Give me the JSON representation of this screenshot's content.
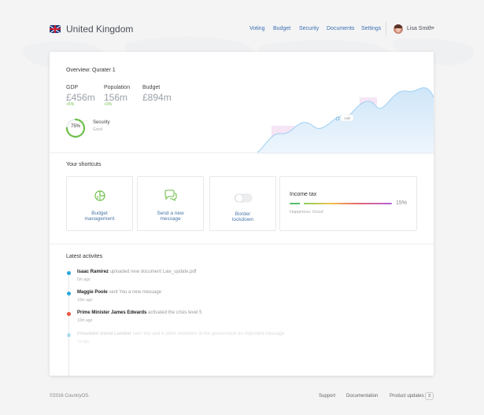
{
  "header": {
    "country": "United Kingdom",
    "nav": [
      "Voting",
      "Budget",
      "Security",
      "Documents",
      "Settings"
    ],
    "user": "Lisa Smith"
  },
  "overview": {
    "title": "Overview: Qurater 1",
    "stats": [
      {
        "label": "GDP",
        "value": "£456m",
        "delta": "+5%"
      },
      {
        "label": "Population",
        "value": "156m",
        "delta": "+3%"
      },
      {
        "label": "Budget",
        "value": "£894m",
        "delta": ""
      }
    ],
    "security": {
      "percent_label": "75%",
      "percent": 0.75,
      "label": "Security",
      "status": "Good"
    },
    "chart_tooltip": "1,2pt",
    "colors": {
      "chart_fill": "#dcecf9",
      "chart_line": "#9fcff2",
      "ring": "#6fbf4a",
      "highlight": "#f1dcf1"
    }
  },
  "shortcuts": {
    "title": "Your shortcuts",
    "items": [
      {
        "label_line1": "Budget",
        "label_line2": "management",
        "icon": "pie-chart-icon"
      },
      {
        "label_line1": "Send a new",
        "label_line2": "message",
        "icon": "chat-bubbles-icon"
      },
      {
        "label_line1": "Border",
        "label_line2": "lockdown",
        "icon": "toggle-icon"
      }
    ],
    "income_tax": {
      "title": "Income tax",
      "percent_label": "15%",
      "percent": 0.15,
      "status": "Happiness: Good"
    }
  },
  "activities": {
    "title": "Latest activites",
    "items": [
      {
        "name": "Isaac Ramirez",
        "text": "uploaded new document Law_update.pdf",
        "time": "5m ago",
        "color": "#29a8dc"
      },
      {
        "name": "Maggie Poole",
        "text": "sent You a new message",
        "time": "10m ago",
        "color": "#29a8dc"
      },
      {
        "name": "Prime Minister James Edwards",
        "text": "activated the crisis level 5",
        "time": "10m ago",
        "color": "#e8553f"
      },
      {
        "name": "President David Lumber",
        "text": "sent You and 8 other members of the government an important message",
        "time": "1h ago",
        "color": "#29a8dc"
      }
    ]
  },
  "footer": {
    "copyright": "©2016 CountryOS.",
    "links": [
      "Support",
      "Documentation",
      "Product updates"
    ],
    "badge": "3"
  }
}
